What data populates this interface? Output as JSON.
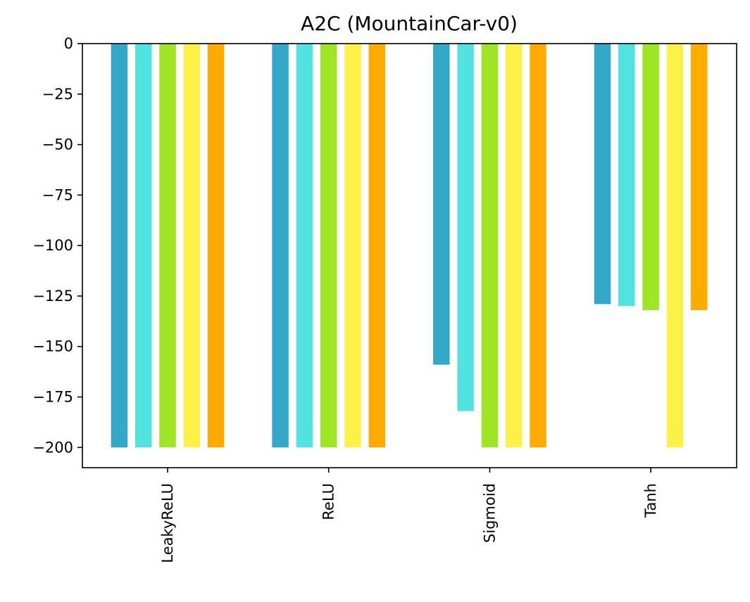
{
  "chart_data": {
    "type": "bar",
    "title": "A2C (MountainCar-v0)",
    "xlabel": "",
    "ylabel": "",
    "categories": [
      "LeakyReLU",
      "ReLU",
      "Sigmoid",
      "Tanh"
    ],
    "series": [
      {
        "color": "#33a8c7",
        "values": [
          -200,
          -200,
          -159,
          -129
        ]
      },
      {
        "color": "#52e3e1",
        "values": [
          -200,
          -200,
          -182,
          -130
        ]
      },
      {
        "color": "#a0e426",
        "values": [
          -200,
          -200,
          -200,
          -132
        ]
      },
      {
        "color": "#fdf148",
        "values": [
          -200,
          -200,
          -200,
          -200
        ]
      },
      {
        "color": "#ffab00",
        "values": [
          -200,
          -200,
          -200,
          -132
        ]
      }
    ],
    "ylim": [
      -210,
      0
    ],
    "yticks": [
      0,
      -25,
      -50,
      -75,
      -100,
      -125,
      -150,
      -175,
      -200
    ],
    "ytick_labels": [
      "0",
      "−25",
      "−50",
      "−75",
      "−100",
      "−125",
      "−150",
      "−175",
      "−200"
    ],
    "grid": false,
    "legend": "none"
  }
}
